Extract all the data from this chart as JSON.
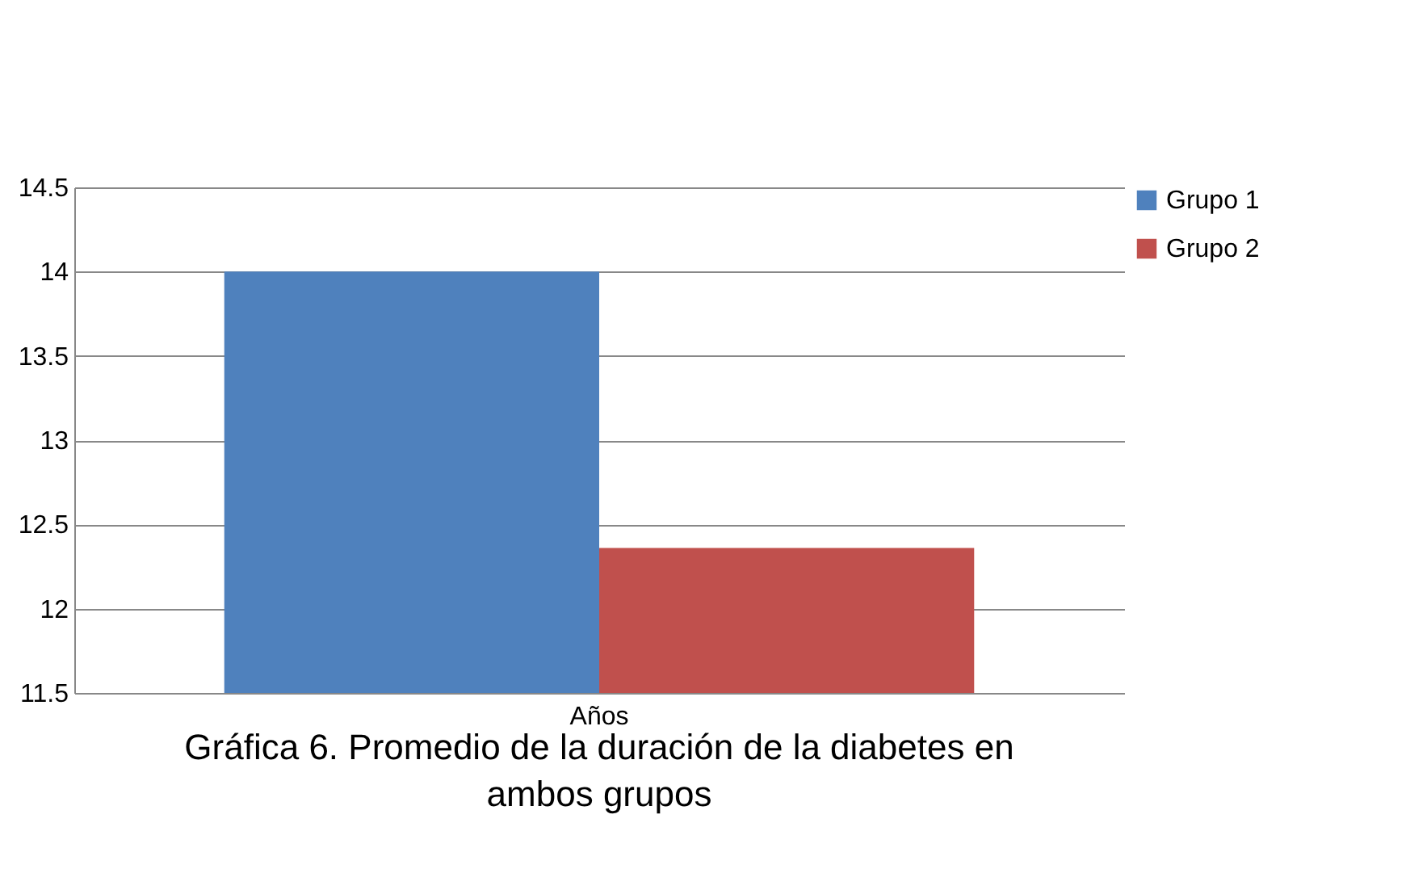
{
  "chart_data": {
    "type": "bar",
    "title": "Gráfica 6. Promedio de la duración de la diabetes en ambos grupos",
    "categories": [
      "Años"
    ],
    "series": [
      {
        "name": "Grupo 1",
        "color": "#4f81bd",
        "values": [
          14.0
        ]
      },
      {
        "name": "Grupo 2",
        "color": "#c0504d",
        "values": [
          12.36
        ]
      }
    ],
    "ylim": [
      11.5,
      14.5
    ],
    "yticks": [
      11.5,
      12,
      12.5,
      13,
      13.5,
      14,
      14.5
    ],
    "grid": "y",
    "legend": "right"
  }
}
